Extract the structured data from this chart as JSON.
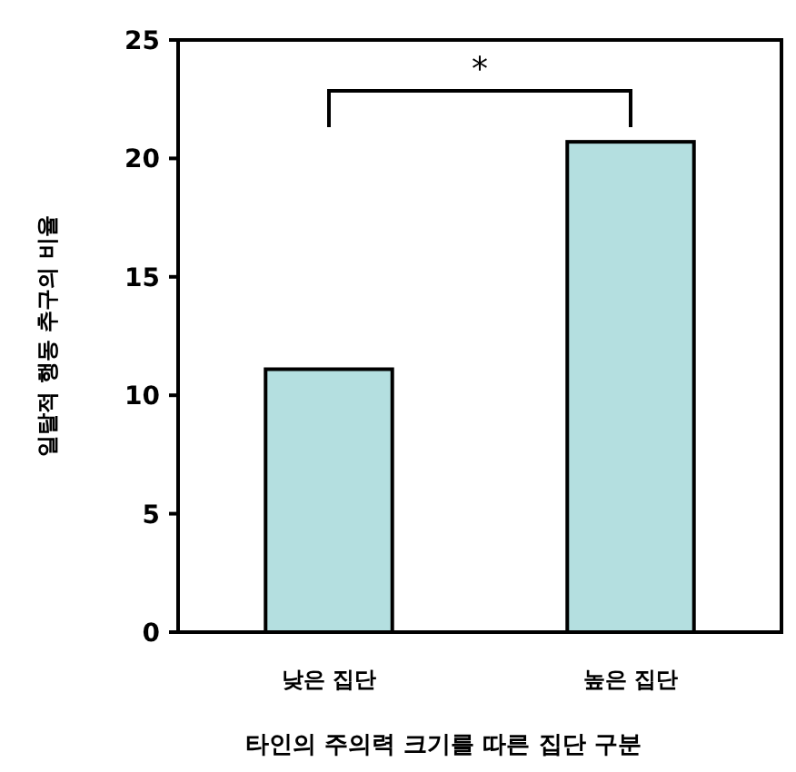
{
  "chart_data": {
    "type": "bar",
    "categories": [
      "낮은 집단",
      "높은 집단"
    ],
    "values": [
      11.1,
      20.7
    ],
    "color": "#b4dfe0",
    "ylim": [
      0,
      25
    ],
    "yticks": [
      0,
      5,
      10,
      15,
      20,
      25
    ],
    "ylabel": "일탈적 행동 추구의 비율",
    "xlabel": "타인의 주의력 크기를 따른 집단 구분",
    "annotations": [
      "*"
    ],
    "grid": false
  }
}
